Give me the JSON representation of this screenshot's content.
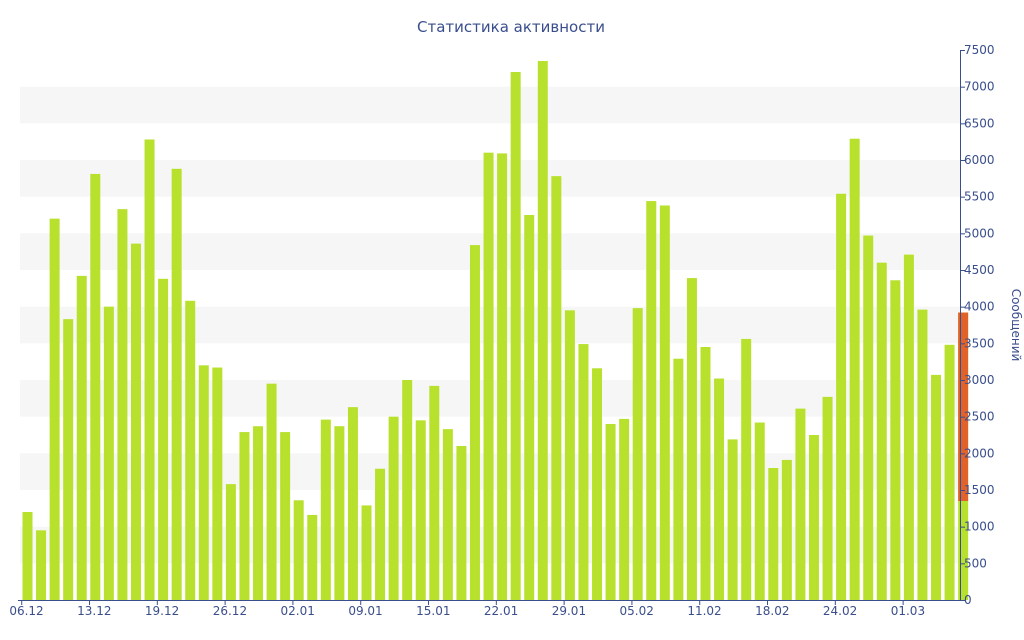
{
  "chart_data": {
    "type": "bar",
    "title": "Статистика активности",
    "ylabel": "Сообщений",
    "xlabel": "",
    "ylim": [
      0,
      7500
    ],
    "y_ticks": [
      0,
      500,
      1000,
      1500,
      2000,
      2500,
      3000,
      3500,
      4000,
      4500,
      5000,
      5500,
      6000,
      6500,
      7000,
      7500
    ],
    "y_axis_position": "right",
    "grid": "alternating horizontal bands",
    "x_tick_labels": [
      {
        "index": 0,
        "label": "06.12"
      },
      {
        "index": 5,
        "label": "13.12"
      },
      {
        "index": 10,
        "label": "19.12"
      },
      {
        "index": 15,
        "label": "26.12"
      },
      {
        "index": 20,
        "label": "02.01"
      },
      {
        "index": 25,
        "label": "09.01"
      },
      {
        "index": 30,
        "label": "15.01"
      },
      {
        "index": 35,
        "label": "22.01"
      },
      {
        "index": 40,
        "label": "29.01"
      },
      {
        "index": 45,
        "label": "05.02"
      },
      {
        "index": 50,
        "label": "11.02"
      },
      {
        "index": 55,
        "label": "18.02"
      },
      {
        "index": 60,
        "label": "24.02"
      },
      {
        "index": 65,
        "label": "01.03"
      }
    ],
    "values": [
      1200,
      950,
      5200,
      3830,
      4420,
      5810,
      4000,
      5330,
      4860,
      6280,
      4380,
      5880,
      4080,
      3200,
      3170,
      1580,
      2290,
      2370,
      2950,
      2290,
      1360,
      1160,
      2460,
      2370,
      2630,
      1290,
      1790,
      2500,
      3000,
      2450,
      2920,
      2330,
      2100,
      4840,
      6100,
      6090,
      7200,
      5250,
      7350,
      5780,
      3950,
      3490,
      3160,
      2400,
      2470,
      3980,
      5440,
      5380,
      3290,
      4390,
      3450,
      3020,
      2190,
      3560,
      2420,
      1800,
      1910,
      2610,
      2250,
      2770,
      5540,
      6290,
      4970,
      4600,
      4360,
      4710,
      3960,
      3070,
      3480,
      3920
    ],
    "highlight": {
      "index": 69,
      "from": 1350,
      "to": 3920
    },
    "colors": {
      "bar": "#b8e12e",
      "highlight": "#e2632a",
      "band": "#f6f6f6",
      "axis": "#3a4e8c"
    }
  }
}
